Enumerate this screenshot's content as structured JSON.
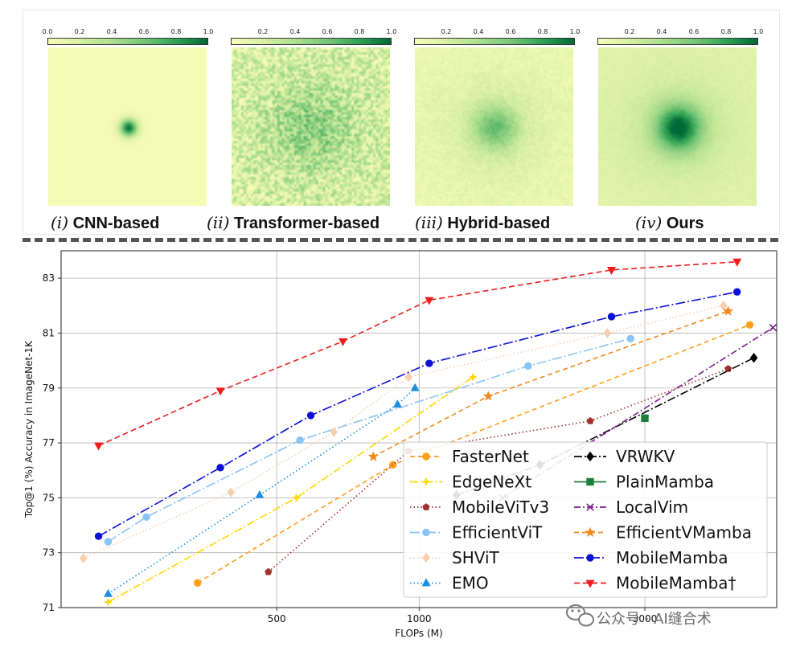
{
  "heatmaps": [
    {
      "roman": "(i)",
      "label": "CNN-based",
      "ticks": [
        "0.0",
        "0.2",
        "0.4",
        "0.6",
        "0.8",
        "1.0"
      ],
      "pattern": "cnn"
    },
    {
      "roman": "(ii)",
      "label": "Transformer-based",
      "ticks": [
        "0.2",
        "0.4",
        "0.6",
        "0.8",
        "1.0"
      ],
      "pattern": "transformer"
    },
    {
      "roman": "(iii)",
      "label": "Hybrid-based",
      "ticks": [
        "0.2",
        "0.4",
        "0.6",
        "0.8",
        "1.0"
      ],
      "pattern": "hybrid"
    },
    {
      "roman": "(iv)",
      "label": "Ours",
      "ticks": [
        "0.2",
        "0.4",
        "0.6",
        "0.8",
        "1.0"
      ],
      "pattern": "ours"
    }
  ],
  "chart_data": {
    "type": "line",
    "xlabel": "FLOPs (M)",
    "ylabel": "Top@1 (%) Accuracy in ImageNet-1K",
    "xscale": "log",
    "xlim": [
      175,
      5700
    ],
    "ylim": [
      71,
      84
    ],
    "xticks": [
      500,
      1000,
      3000
    ],
    "yticks": [
      71,
      73,
      75,
      77,
      79,
      81,
      83
    ],
    "grid": true,
    "legend_position": "lower-right",
    "series": [
      {
        "name": "FasterNet",
        "color": "#ff9e1b",
        "dash": "6,4",
        "marker": "circle",
        "x": [
          340,
          880,
          5000
        ],
        "y": [
          71.9,
          76.2,
          81.3
        ]
      },
      {
        "name": "EdgeNeXt",
        "color": "#ffd700",
        "dash": "10,3,2,3",
        "marker": "plus",
        "x": [
          220,
          550,
          1300
        ],
        "y": [
          71.2,
          75.0,
          79.4
        ]
      },
      {
        "name": "MobileViTv3",
        "color": "#a0322d",
        "dash": "1.5,3",
        "marker": "pentagon",
        "x": [
          480,
          950,
          2300,
          4500
        ],
        "y": [
          72.3,
          76.7,
          77.8,
          79.7
        ]
      },
      {
        "name": "EfficientViT",
        "color": "#89c4f4",
        "dash": "12,3,2,3",
        "marker": "circle",
        "x": [
          220,
          265,
          560,
          1700,
          2800
        ],
        "y": [
          73.4,
          74.3,
          77.1,
          79.8,
          80.8
        ]
      },
      {
        "name": "SHViT",
        "color": "#f7cfae",
        "dash": "1.5,3",
        "marker": "diamond",
        "x": [
          195,
          400,
          660,
          950,
          2500,
          4400
        ],
        "y": [
          72.8,
          75.2,
          77.4,
          79.4,
          81.0,
          82.0
        ]
      },
      {
        "name": "EMO",
        "color": "#1c8fe0",
        "dash": "1.5,3",
        "marker": "triangle-up",
        "x": [
          220,
          460,
          900,
          980
        ],
        "y": [
          71.5,
          75.1,
          78.4,
          79.0
        ]
      },
      {
        "name": "VRWKV",
        "color": "#000000",
        "dash": "10,3,2,3",
        "marker": "diamond",
        "x": [
          1200,
          1800,
          5100
        ],
        "y": [
          75.1,
          76.2,
          80.1
        ]
      },
      {
        "name": "PlainMamba",
        "color": "#1b7f3a",
        "dash": "",
        "marker": "square",
        "x": [
          3000
        ],
        "y": [
          77.9
        ]
      },
      {
        "name": "LocalVim",
        "color": "#7a1f8c",
        "dash": "8,3,2,3",
        "marker": "x",
        "x": [
          1500,
          5600
        ],
        "y": [
          75.0,
          81.2
        ]
      },
      {
        "name": "EfficientVMamba",
        "color": "#f08a1c",
        "dash": "6,4",
        "marker": "star",
        "x": [
          800,
          1400,
          4500
        ],
        "y": [
          76.5,
          78.7,
          81.8
        ]
      },
      {
        "name": "MobileMamba",
        "color": "#0a10d6",
        "dash": "12,3,2,3",
        "marker": "circle",
        "x": [
          210,
          380,
          590,
          1050,
          2550,
          4700
        ],
        "y": [
          73.6,
          76.1,
          78.0,
          79.9,
          81.6,
          82.5
        ]
      },
      {
        "name": "MobileMamba†",
        "color": "#ee1c1c",
        "dash": "7,4",
        "marker": "triangle-down",
        "x": [
          210,
          380,
          690,
          1050,
          2550,
          4700
        ],
        "y": [
          76.9,
          78.9,
          80.7,
          82.2,
          83.3,
          83.6
        ]
      }
    ]
  },
  "watermark": {
    "text": "公众号 · AI缝合术",
    "icon": "wechat-icon"
  }
}
